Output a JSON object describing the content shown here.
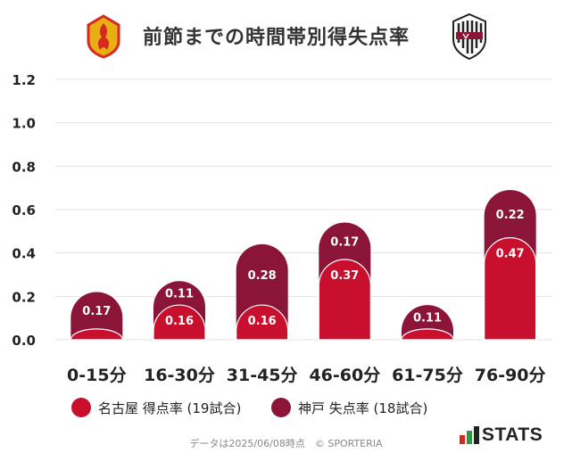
{
  "title": "前節までの時間帯別得失点率",
  "colors": {
    "series1": "#c8102e",
    "series2": "#8b1538",
    "grid": "#e3e3e3",
    "axis_text": "#222222",
    "label_text": "#ffffff"
  },
  "chart_data": {
    "type": "bar",
    "categories": [
      "0-15分",
      "16-30分",
      "31-45分",
      "46-60分",
      "61-75分",
      "76-90分"
    ],
    "series": [
      {
        "name": "名古屋 得点率 (19試合)",
        "values": [
          0.05,
          0.16,
          0.16,
          0.37,
          0.05,
          0.47
        ],
        "labels": [
          "",
          "0.16",
          "0.16",
          "0.37",
          "",
          "0.47"
        ]
      },
      {
        "name": "神戸 失点率 (18試合)",
        "values": [
          0.17,
          0.11,
          0.28,
          0.17,
          0.11,
          0.22
        ],
        "labels": [
          "0.17",
          "0.11",
          "0.28",
          "0.17",
          "0.11",
          "0.22"
        ]
      }
    ],
    "stacked": true,
    "ylim": [
      0,
      1.2
    ],
    "yticks": [
      "0.0",
      "0.2",
      "0.4",
      "0.6",
      "0.8",
      "1.0",
      "1.2"
    ],
    "grid": true,
    "legend_position": "bottom"
  },
  "legend": {
    "item1": "名古屋 得点率 (19試合)",
    "item2": "神戸 失点率 (18試合)"
  },
  "footer": {
    "note": "データは2025/06/08時点　© SPORTERIA",
    "brand": "STATS"
  }
}
